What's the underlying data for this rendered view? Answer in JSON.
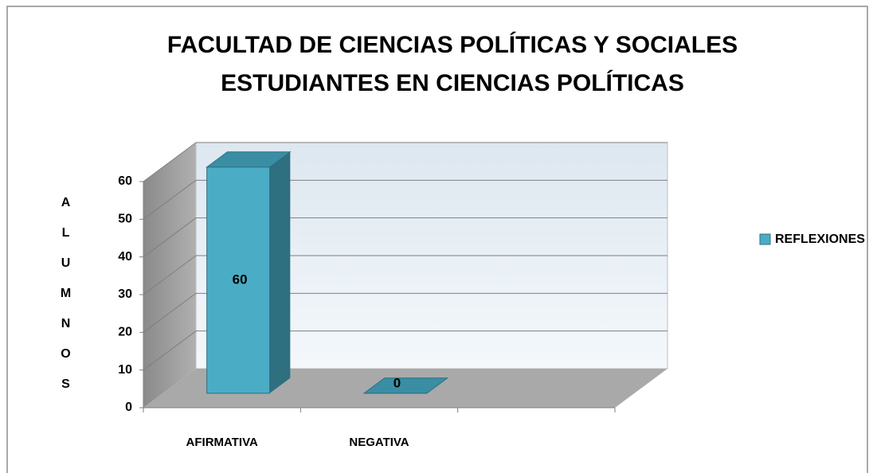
{
  "chart_data": {
    "type": "bar3d",
    "title": "FACULTAD DE CIENCIAS POLÍTICAS Y SOCIALES",
    "subtitle": "ESTUDIANTES EN CIENCIAS POLÍTICAS",
    "y_label": "ALUMNOS",
    "categories": [
      "AFIRMATIVA",
      "NEGATIVA",
      null
    ],
    "series": [
      {
        "name": "REFLEXIONES",
        "color": "#4bacc6",
        "values": [
          60,
          0,
          null
        ]
      }
    ],
    "ylim": [
      0,
      60
    ],
    "yticks": [
      0,
      10,
      20,
      30,
      40,
      50,
      60
    ],
    "grid": true,
    "legend": "right"
  }
}
